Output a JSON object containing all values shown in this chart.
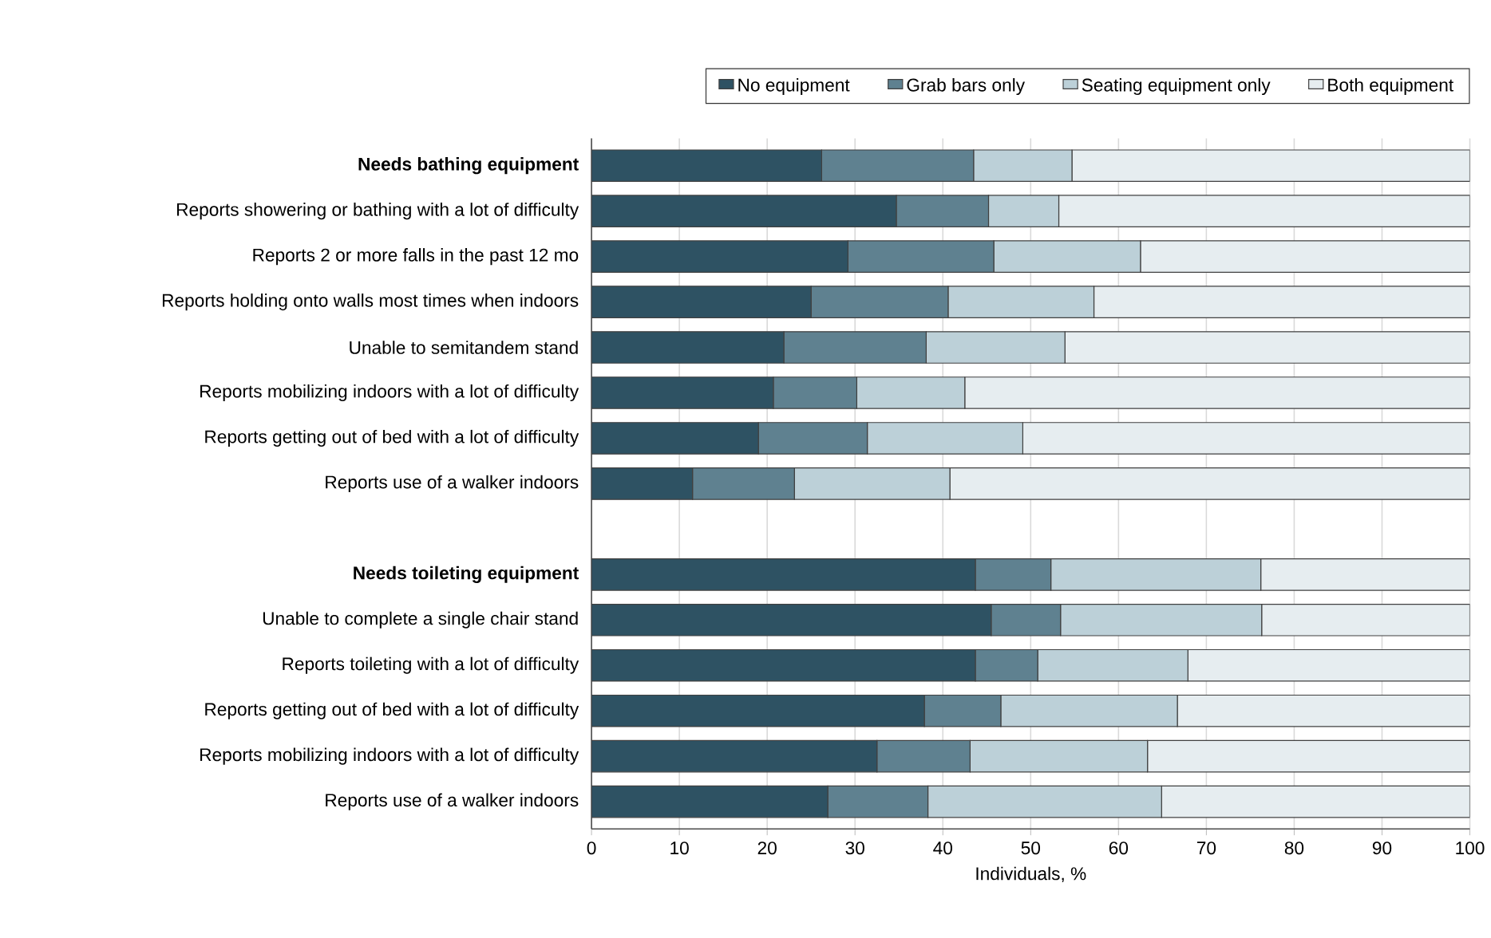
{
  "chart_data": {
    "type": "bar",
    "orientation": "horizontal",
    "stacked": true,
    "xlabel": "Individuals, %",
    "xlim": [
      0,
      100
    ],
    "xticks": [
      0,
      10,
      20,
      30,
      40,
      50,
      60,
      70,
      80,
      90,
      100
    ],
    "grid": "x",
    "legend": "top",
    "categories": [
      "Needs bathing equipment",
      "Reports showering or bathing with a lot of difficulty",
      "Reports 2 or more falls in the past 12 mo",
      "Reports holding onto walls most times when indoors",
      "Unable to semitandem stand",
      "Reports mobilizing indoors with a lot of difficulty",
      "Reports getting out of bed with a lot of difficulty",
      "Reports use of a walker indoors",
      null,
      "Needs toileting equipment",
      "Unable to complete a single chair stand",
      "Reports toileting with a lot of difficulty",
      "Reports getting out of bed with a lot of difficulty",
      "Reports mobilizing indoors with a lot of difficulty",
      "Reports use of a walker indoors"
    ],
    "series": [
      {
        "name": "No equipment",
        "color": "#2e5263",
        "values": [
          26.2,
          34.7,
          29.2,
          25.0,
          21.9,
          20.7,
          19.0,
          11.5,
          null,
          43.7,
          45.5,
          43.7,
          37.9,
          32.5,
          26.9
        ]
      },
      {
        "name": "Grab bars only",
        "color": "#5f8190",
        "values": [
          17.3,
          10.5,
          16.6,
          15.6,
          16.2,
          9.5,
          12.4,
          11.6,
          null,
          8.6,
          7.9,
          7.1,
          8.7,
          10.6,
          11.4
        ]
      },
      {
        "name": "Seating equipment only",
        "color": "#bcd0d8",
        "values": [
          11.2,
          8.0,
          16.7,
          16.6,
          15.8,
          12.3,
          17.7,
          17.7,
          null,
          23.9,
          22.9,
          17.1,
          20.1,
          20.2,
          26.6
        ]
      },
      {
        "name": "Both equipment",
        "color": "#e6edf0",
        "values": [
          45.3,
          46.8,
          37.5,
          42.8,
          46.1,
          57.5,
          50.9,
          59.2,
          null,
          23.8,
          23.7,
          32.1,
          33.3,
          36.7,
          35.1
        ]
      }
    ]
  }
}
